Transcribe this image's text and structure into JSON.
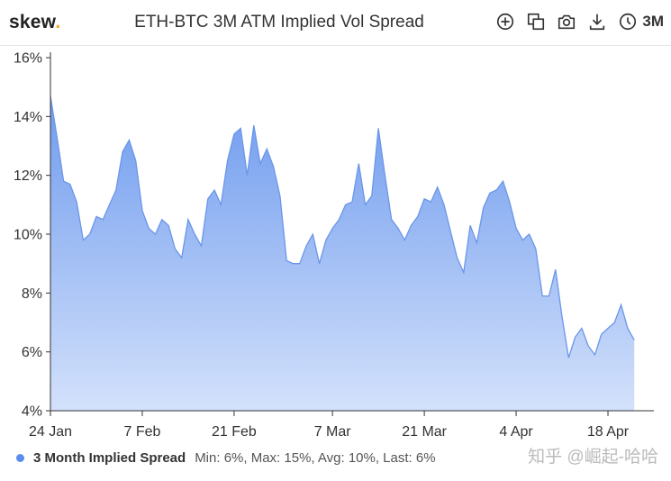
{
  "header": {
    "logo": "skew",
    "logo_dot": ".",
    "title": "ETH-BTC 3M ATM Implied Vol Spread",
    "range_label": "3M"
  },
  "toolbar": {
    "icons": [
      "zoom-in-icon",
      "copy-icon",
      "camera-icon",
      "download-icon",
      "clock-icon"
    ]
  },
  "legend": {
    "name": "3 Month Implied Spread",
    "stats": "Min: 6%, Max: 15%, Avg: 10%, Last: 6%",
    "color": "#5b8def"
  },
  "watermark": "知乎 @崛起-哈哈",
  "chart_data": {
    "type": "area",
    "title": "ETH-BTC 3M ATM Implied Vol Spread",
    "series_name": "3 Month Implied Spread",
    "y_ticks": [
      "16%",
      "14%",
      "12%",
      "10%",
      "8%",
      "6%",
      "4%"
    ],
    "y_tick_values": [
      16,
      14,
      12,
      10,
      8,
      6,
      4
    ],
    "ylim": [
      4,
      16
    ],
    "x_start": "2020-01-24",
    "x_end": "2020-04-25",
    "x_ticks": [
      {
        "date": "2020-01-24",
        "label": "24 Jan"
      },
      {
        "date": "2020-02-07",
        "label": "7 Feb"
      },
      {
        "date": "2020-02-21",
        "label": "21 Feb"
      },
      {
        "date": "2020-03-07",
        "label": "7 Mar"
      },
      {
        "date": "2020-03-21",
        "label": "21 Mar"
      },
      {
        "date": "2020-04-04",
        "label": "4 Apr"
      },
      {
        "date": "2020-04-18",
        "label": "18 Apr"
      }
    ],
    "points": [
      [
        "2020-01-24",
        14.7
      ],
      [
        "2020-01-25",
        13.3
      ],
      [
        "2020-01-26",
        11.8
      ],
      [
        "2020-01-27",
        11.7
      ],
      [
        "2020-01-28",
        11.1
      ],
      [
        "2020-01-29",
        9.8
      ],
      [
        "2020-01-30",
        10.0
      ],
      [
        "2020-01-31",
        10.6
      ],
      [
        "2020-02-01",
        10.5
      ],
      [
        "2020-02-02",
        11.0
      ],
      [
        "2020-02-03",
        11.5
      ],
      [
        "2020-02-04",
        12.8
      ],
      [
        "2020-02-05",
        13.2
      ],
      [
        "2020-02-06",
        12.5
      ],
      [
        "2020-02-07",
        10.8
      ],
      [
        "2020-02-08",
        10.2
      ],
      [
        "2020-02-09",
        10.0
      ],
      [
        "2020-02-10",
        10.5
      ],
      [
        "2020-02-11",
        10.3
      ],
      [
        "2020-02-12",
        9.5
      ],
      [
        "2020-02-13",
        9.2
      ],
      [
        "2020-02-14",
        10.5
      ],
      [
        "2020-02-15",
        10.0
      ],
      [
        "2020-02-16",
        9.6
      ],
      [
        "2020-02-17",
        11.2
      ],
      [
        "2020-02-18",
        11.5
      ],
      [
        "2020-02-19",
        11.0
      ],
      [
        "2020-02-20",
        12.5
      ],
      [
        "2020-02-21",
        13.4
      ],
      [
        "2020-02-22",
        13.6
      ],
      [
        "2020-02-23",
        12.0
      ],
      [
        "2020-02-24",
        13.7
      ],
      [
        "2020-02-25",
        12.4
      ],
      [
        "2020-02-26",
        12.9
      ],
      [
        "2020-02-27",
        12.3
      ],
      [
        "2020-02-28",
        11.3
      ],
      [
        "2020-02-29",
        9.1
      ],
      [
        "2020-03-01",
        9.0
      ],
      [
        "2020-03-02",
        9.0
      ],
      [
        "2020-03-03",
        9.6
      ],
      [
        "2020-03-04",
        10.0
      ],
      [
        "2020-03-05",
        9.0
      ],
      [
        "2020-03-06",
        9.8
      ],
      [
        "2020-03-07",
        10.2
      ],
      [
        "2020-03-08",
        10.5
      ],
      [
        "2020-03-09",
        11.0
      ],
      [
        "2020-03-10",
        11.1
      ],
      [
        "2020-03-11",
        12.4
      ],
      [
        "2020-03-12",
        11.0
      ],
      [
        "2020-03-13",
        11.3
      ],
      [
        "2020-03-14",
        13.6
      ],
      [
        "2020-03-15",
        12.0
      ],
      [
        "2020-03-16",
        10.5
      ],
      [
        "2020-03-17",
        10.2
      ],
      [
        "2020-03-18",
        9.8
      ],
      [
        "2020-03-19",
        10.3
      ],
      [
        "2020-03-20",
        10.6
      ],
      [
        "2020-03-21",
        11.2
      ],
      [
        "2020-03-22",
        11.1
      ],
      [
        "2020-03-23",
        11.6
      ],
      [
        "2020-03-24",
        11.0
      ],
      [
        "2020-03-25",
        10.1
      ],
      [
        "2020-03-26",
        9.2
      ],
      [
        "2020-03-27",
        8.7
      ],
      [
        "2020-03-28",
        10.3
      ],
      [
        "2020-03-29",
        9.7
      ],
      [
        "2020-03-30",
        10.9
      ],
      [
        "2020-03-31",
        11.4
      ],
      [
        "2020-04-01",
        11.5
      ],
      [
        "2020-04-02",
        11.8
      ],
      [
        "2020-04-03",
        11.1
      ],
      [
        "2020-04-04",
        10.2
      ],
      [
        "2020-04-05",
        9.8
      ],
      [
        "2020-04-06",
        10.0
      ],
      [
        "2020-04-07",
        9.5
      ],
      [
        "2020-04-08",
        7.9
      ],
      [
        "2020-04-09",
        7.9
      ],
      [
        "2020-04-10",
        8.8
      ],
      [
        "2020-04-11",
        7.2
      ],
      [
        "2020-04-12",
        5.8
      ],
      [
        "2020-04-13",
        6.5
      ],
      [
        "2020-04-14",
        6.8
      ],
      [
        "2020-04-15",
        6.2
      ],
      [
        "2020-04-16",
        5.9
      ],
      [
        "2020-04-17",
        6.6
      ],
      [
        "2020-04-18",
        6.8
      ],
      [
        "2020-04-19",
        7.0
      ],
      [
        "2020-04-20",
        7.6
      ],
      [
        "2020-04-21",
        6.8
      ],
      [
        "2020-04-22",
        6.4
      ]
    ],
    "line_color": "#6b96e8",
    "fill_top_color": "#6f9bee",
    "fill_bottom_color": "#d3e1fb",
    "grid": false,
    "legend_position": "bottom-left"
  }
}
